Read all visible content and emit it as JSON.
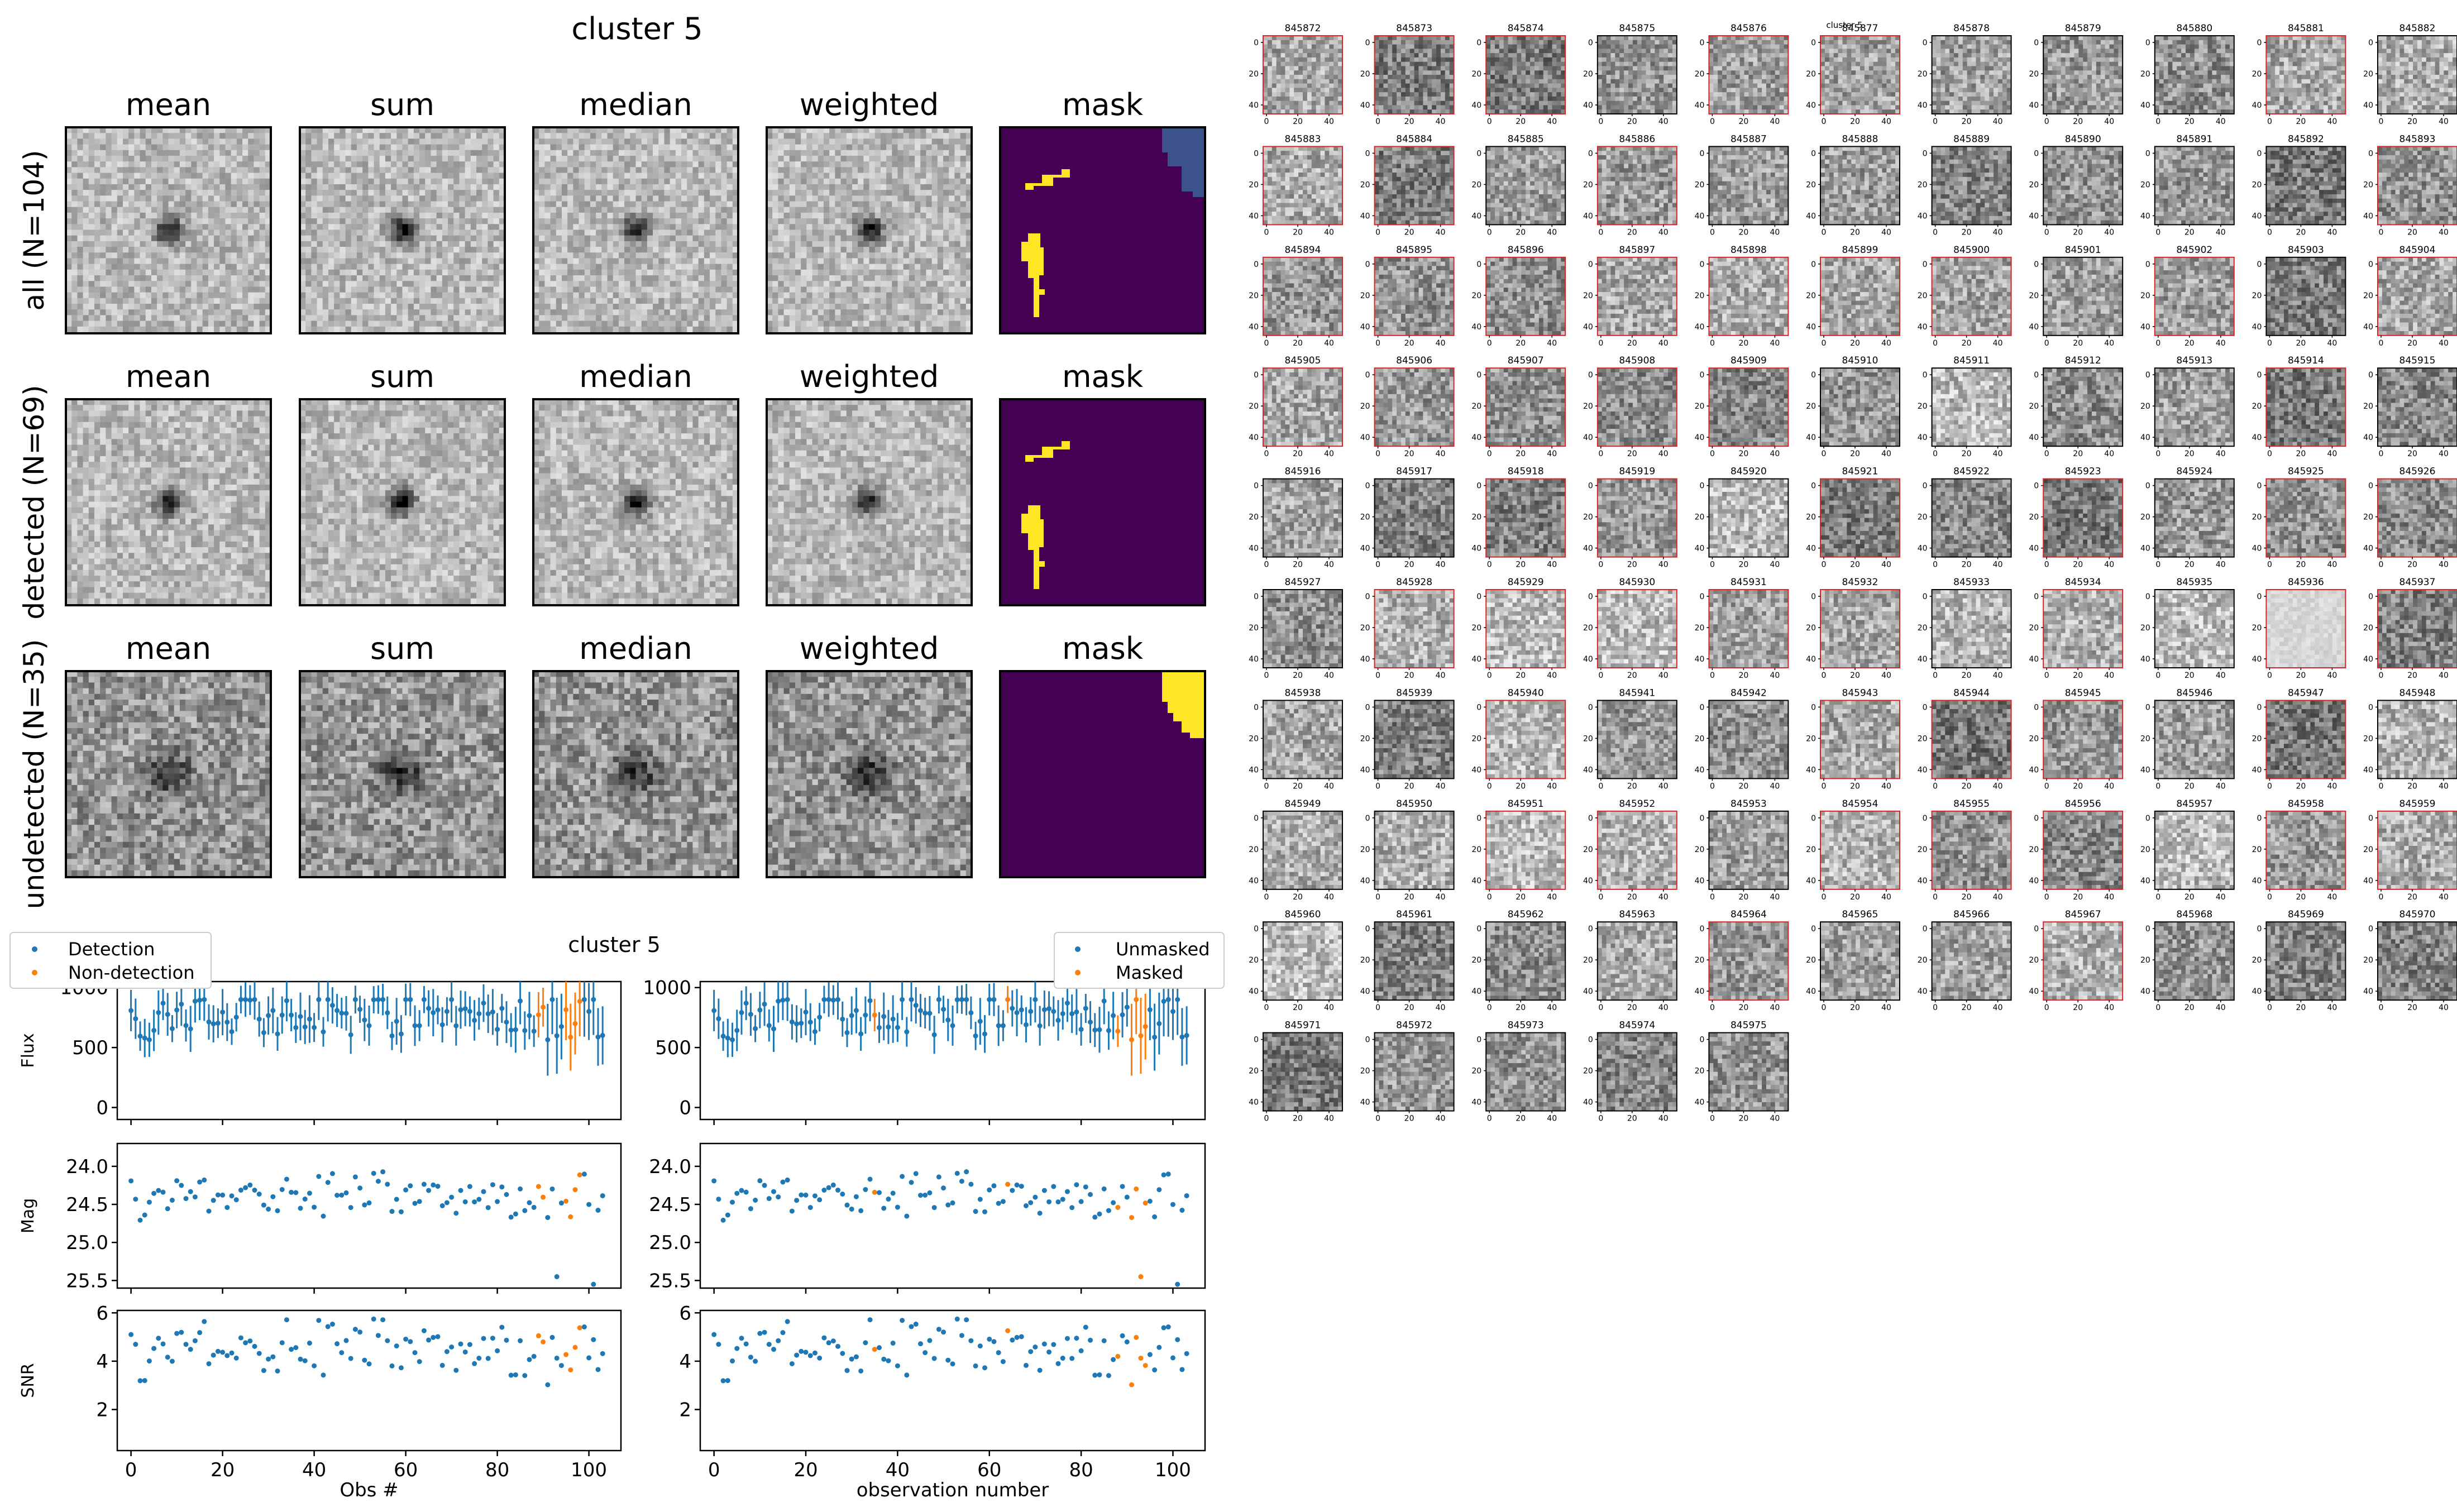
{
  "figure": {
    "title": "cluster 5",
    "stamp_columns": [
      "mean",
      "sum",
      "median",
      "weighted",
      "mask"
    ],
    "stamp_rows": [
      "all (N=104)",
      "detected (N=69)",
      "undetected (N=35)"
    ],
    "colors": {
      "blue": "#1f77b4",
      "orange": "#ff7f0e",
      "mask_bg": "#440154",
      "mask_fg": "#fde725",
      "mask_mid": "#3b528b",
      "thumb_border": "#d62728"
    }
  },
  "lightcurve": {
    "title": "cluster 5",
    "left_legend": [
      "Detection",
      "Non-detection"
    ],
    "right_legend": [
      "Unmasked",
      "Masked"
    ],
    "left_xlabel": "Obs #",
    "right_xlabel": "observation number",
    "ylabels": [
      "Flux",
      "Mag",
      "SNR"
    ]
  },
  "chart_data": [
    {
      "type": "scatter",
      "title": "cluster 5",
      "xlabel": "Obs #",
      "ylabel": "Flux",
      "xlim": [
        -3,
        107
      ],
      "ylim": [
        -100,
        1050
      ],
      "xticks": [
        0,
        20,
        40,
        60,
        80,
        100
      ],
      "yticks": [
        0,
        500,
        1000
      ],
      "legend": "top-left",
      "series": [
        {
          "name": "Detection"
        },
        {
          "name": "Non-detection"
        }
      ],
      "note": "104 observations with error bars; orange points mark non-detections"
    },
    {
      "type": "scatter",
      "ylabel": "Mag",
      "ylim": [
        25.6,
        23.7
      ],
      "yticks": [
        24.0,
        24.5,
        25.0,
        25.5
      ],
      "inverted_y": true
    },
    {
      "type": "scatter",
      "xlabel": "Obs #",
      "ylabel": "SNR",
      "ylim": [
        0.3,
        6.1
      ],
      "yticks": [
        2,
        4,
        6
      ]
    },
    {
      "type": "scatter",
      "xlabel": "observation number",
      "legend": "top-right",
      "series": [
        {
          "name": "Unmasked"
        },
        {
          "name": "Masked"
        }
      ]
    }
  ],
  "thumbnails": {
    "title": "cluster 5",
    "first_id": 845872,
    "last_id": 845975,
    "columns": 11,
    "xtick_labels": [
      "0",
      "20",
      "40"
    ],
    "ytick_labels": [
      "0",
      "20",
      "40"
    ]
  }
}
